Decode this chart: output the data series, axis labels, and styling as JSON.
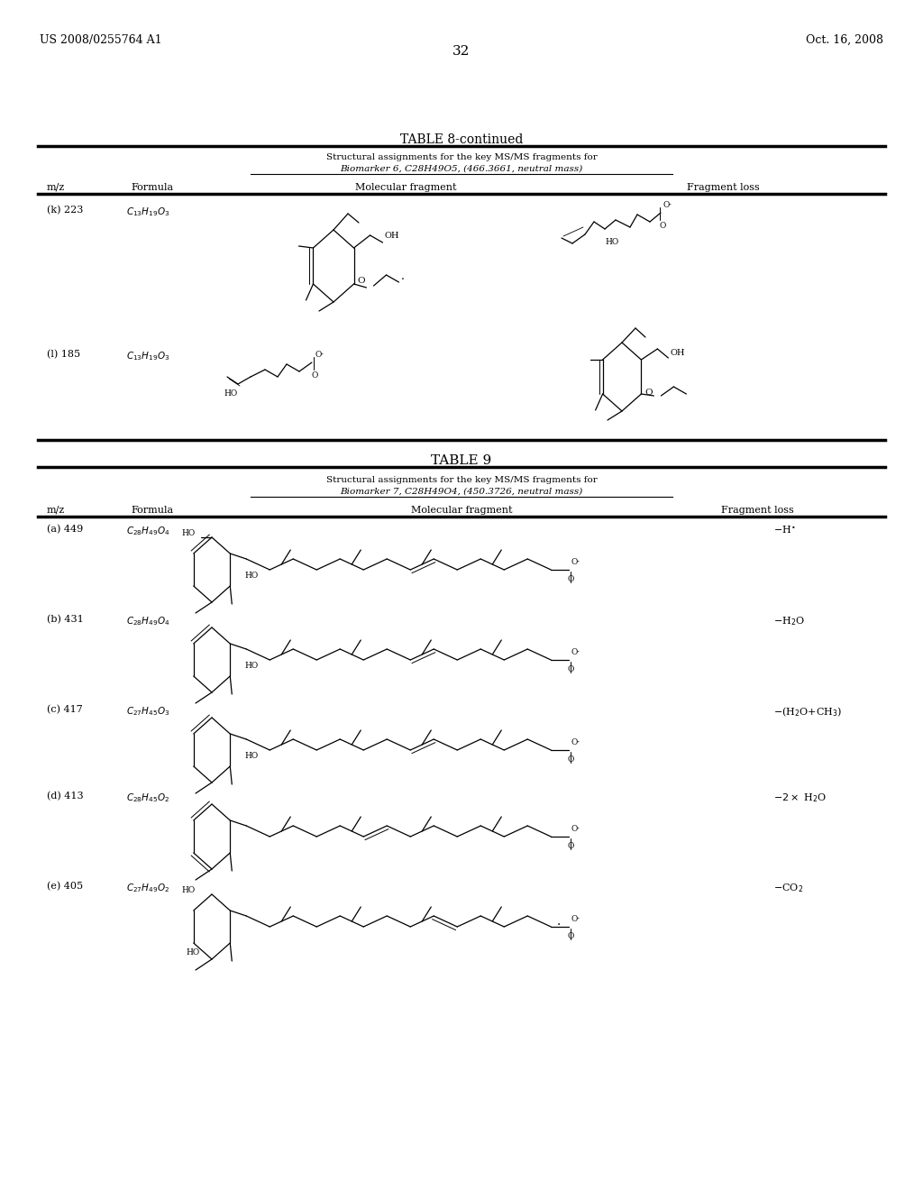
{
  "page_number": "32",
  "patent_number": "US 2008/0255764 A1",
  "patent_date": "Oct. 16, 2008",
  "bg": "#ffffff",
  "t8_title": "TABLE 8-continued",
  "t8_sub1": "Structural assignments for the key MS/MS fragments for",
  "t8_sub2": "Biomarker 6, C28H49O5, (466.3661, neutral mass)",
  "t9_title": "TABLE 9",
  "t9_sub1": "Structural assignments for the key MS/MS fragments for",
  "t9_sub2": "Biomarker 7, C28H49O4, (450.3726, neutral mass)",
  "col_mz": "m/z",
  "col_formula": "Formula",
  "col_mol": "Molecular fragment",
  "col_frag": "Fragment loss",
  "t8_rows": [
    {
      "label": "(k) 223",
      "formula": "$C_{13}H_{19}O_3$"
    },
    {
      "label": "(l) 185",
      "formula": "$C_{13}H_{19}O_3$"
    }
  ],
  "t9_rows": [
    {
      "label": "(a) 449",
      "formula": "$C_{28}H_{49}O_4$",
      "loss": "$-$H$^{\\bullet}$"
    },
    {
      "label": "(b) 431",
      "formula": "$C_{28}H_{49}O_4$",
      "loss": "$-$H$_2$O"
    },
    {
      "label": "(c) 417",
      "formula": "$C_{27}H_{45}O_3$",
      "loss": "$-$(H$_2$O$+$CH$_3$)"
    },
    {
      "label": "(d) 413",
      "formula": "$C_{28}H_{45}O_2$",
      "loss": "$-2\\times$ H$_2$O"
    },
    {
      "label": "(e) 405",
      "formula": "$C_{27}H_{49}O_2$",
      "loss": "$-$CO$_2$"
    }
  ]
}
